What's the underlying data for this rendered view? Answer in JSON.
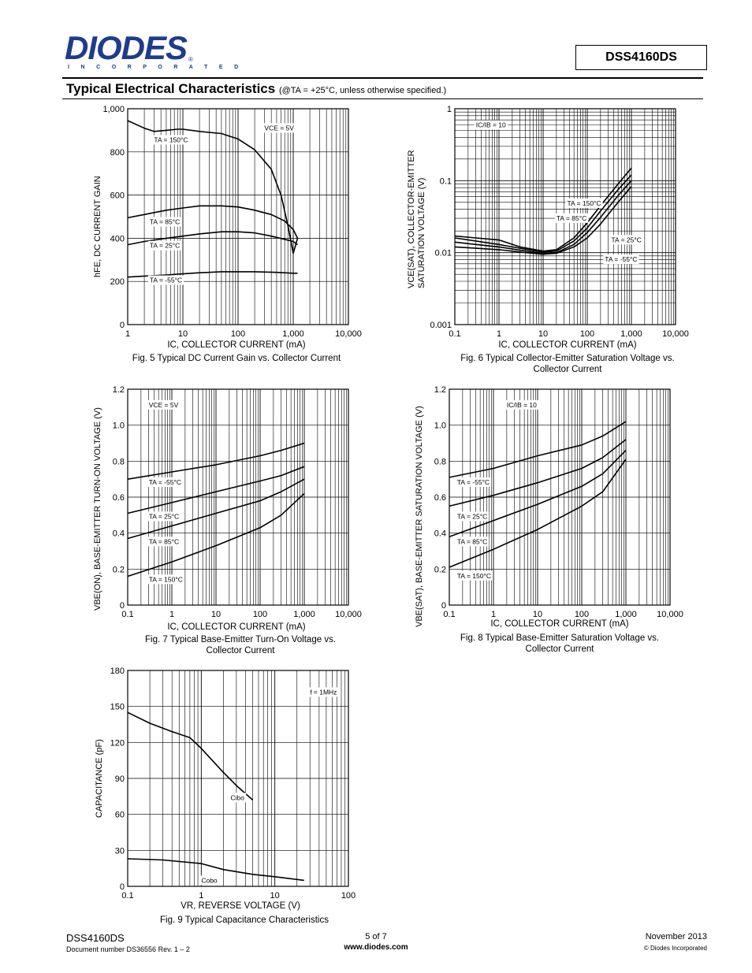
{
  "header": {
    "logo_text": "DIODES",
    "logo_sub": "I N C O R P O R A T E D",
    "part_number": "DSS4160DS",
    "section_title": "Typical Electrical Characteristics",
    "section_note": "(@TA = +25°C, unless otherwise specified.)"
  },
  "footer": {
    "part": "DSS4160DS",
    "doc": "Document number DS36556  Rev. 1 – 2",
    "page": "5 of 7",
    "url": "www.diodes.com",
    "date": "November 2013",
    "copyright": "© Diodes Incorporated"
  },
  "chart_data": [
    {
      "id": "fig5",
      "type": "line",
      "caption": "Fig. 5 Typical DC Current Gain vs. Collector Current",
      "xlabel": "IC, COLLECTOR CURRENT (mA)",
      "ylabel": "hFE, DC CURRENT GAIN",
      "xscale": "log",
      "yscale": "linear",
      "xlim": [
        1,
        10000
      ],
      "ylim": [
        0,
        1000
      ],
      "xticks": [
        1,
        10,
        100,
        1000,
        10000
      ],
      "xtick_labels": [
        "1",
        "10",
        "100",
        "1,000",
        "10,000"
      ],
      "yticks": [
        0,
        200,
        400,
        600,
        800,
        1000
      ],
      "ytick_labels": [
        "0",
        "200",
        "400",
        "600",
        "800",
        "1,000"
      ],
      "grid": true,
      "annotations": [
        {
          "text": "VCE = 5V",
          "x": 300,
          "y": 900
        },
        {
          "text": "TA = 150°C",
          "x": 3,
          "y": 845
        },
        {
          "text": "TA = 85°C",
          "x": 2.5,
          "y": 465
        },
        {
          "text": "TA = 25°C",
          "x": 2.5,
          "y": 355
        },
        {
          "text": "TA = -55°C",
          "x": 2.5,
          "y": 195
        }
      ],
      "series": [
        {
          "name": "TA = 150°C",
          "x": [
            1,
            2,
            3,
            5,
            8,
            10,
            20,
            50,
            100,
            200,
            400,
            600,
            800,
            1000,
            1200
          ],
          "y": [
            945,
            910,
            895,
            900,
            905,
            905,
            895,
            885,
            860,
            810,
            720,
            600,
            460,
            330,
            400
          ]
        },
        {
          "name": "TA = 85°C",
          "x": [
            1,
            2,
            5,
            10,
            20,
            50,
            100,
            200,
            400,
            700,
            1000,
            1200
          ],
          "y": [
            495,
            510,
            530,
            540,
            550,
            550,
            545,
            530,
            510,
            480,
            440,
            400
          ]
        },
        {
          "name": "TA = 25°C",
          "x": [
            1,
            2,
            5,
            10,
            20,
            50,
            100,
            200,
            400,
            700,
            1000,
            1200
          ],
          "y": [
            370,
            385,
            400,
            410,
            420,
            430,
            430,
            425,
            410,
            395,
            385,
            370
          ]
        },
        {
          "name": "TA = -55°C",
          "x": [
            1,
            2,
            5,
            10,
            20,
            50,
            100,
            200,
            500,
            1000,
            1200
          ],
          "y": [
            220,
            225,
            230,
            235,
            240,
            245,
            245,
            245,
            242,
            238,
            238
          ]
        }
      ]
    },
    {
      "id": "fig6",
      "type": "line",
      "caption": "Fig. 6 Typical Collector-Emitter Saturation Voltage vs. Collector Current",
      "xlabel": "IC, COLLECTOR CURRENT (mA)",
      "ylabel": "VCE(SAT), COLLECTOR-EMITTER SATURATION VOLTAGE (V)",
      "xscale": "log",
      "yscale": "log",
      "xlim": [
        0.1,
        10000
      ],
      "ylim": [
        0.001,
        1
      ],
      "xticks": [
        0.1,
        1,
        10,
        100,
        1000,
        10000
      ],
      "xtick_labels": [
        "0.1",
        "1",
        "10",
        "100",
        "1,000",
        "10,000"
      ],
      "yticks": [
        0.001,
        0.01,
        0.1,
        1
      ],
      "ytick_labels": [
        "0.001",
        "0.01",
        "0.1",
        "1"
      ],
      "grid": true,
      "annotations": [
        {
          "text": "IC/IB = 10",
          "x": 0.3,
          "y": 0.55
        },
        {
          "text": "TA = 150°C",
          "x": 35,
          "y": 0.045
        },
        {
          "text": "TA = 85°C",
          "x": 20,
          "y": 0.028
        },
        {
          "text": "TA = 25°C",
          "x": 350,
          "y": 0.014
        },
        {
          "text": "TA = -55°C",
          "x": 250,
          "y": 0.0075
        }
      ],
      "series": [
        {
          "name": "TA = 150°C",
          "x": [
            0.1,
            0.3,
            1,
            3,
            10,
            20,
            50,
            100,
            200,
            500,
            1000
          ],
          "y": [
            0.017,
            0.016,
            0.015,
            0.012,
            0.0105,
            0.011,
            0.016,
            0.026,
            0.045,
            0.09,
            0.15
          ]
        },
        {
          "name": "TA = 85°C",
          "x": [
            0.1,
            0.3,
            1,
            3,
            10,
            20,
            50,
            100,
            200,
            500,
            1000
          ],
          "y": [
            0.016,
            0.0145,
            0.013,
            0.0115,
            0.0102,
            0.0105,
            0.0145,
            0.022,
            0.038,
            0.075,
            0.12
          ]
        },
        {
          "name": "TA = 25°C",
          "x": [
            0.1,
            0.3,
            1,
            3,
            10,
            20,
            50,
            100,
            200,
            500,
            1000
          ],
          "y": [
            0.014,
            0.013,
            0.012,
            0.0108,
            0.0098,
            0.01,
            0.013,
            0.019,
            0.031,
            0.062,
            0.1
          ]
        },
        {
          "name": "TA = -55°C",
          "x": [
            0.1,
            0.3,
            1,
            3,
            10,
            20,
            50,
            100,
            200,
            500,
            1000
          ],
          "y": [
            0.012,
            0.0115,
            0.011,
            0.0102,
            0.0095,
            0.0098,
            0.012,
            0.016,
            0.025,
            0.05,
            0.083
          ]
        }
      ]
    },
    {
      "id": "fig7",
      "type": "line",
      "caption": "Fig. 7 Typical Base-Emitter Turn-On Voltage vs. Collector Current",
      "xlabel": "IC, COLLECTOR CURRENT (mA)",
      "ylabel": "VBE(ON), BASE-EMITTER TURN-ON VOLTAGE (V)",
      "xscale": "log",
      "yscale": "linear",
      "xlim": [
        0.1,
        10000
      ],
      "ylim": [
        0,
        1.2
      ],
      "xticks": [
        0.1,
        1,
        10,
        100,
        1000,
        10000
      ],
      "xtick_labels": [
        "0.1",
        "1",
        "10",
        "100",
        "1,000",
        "10,000"
      ],
      "yticks": [
        0,
        0.2,
        0.4,
        0.6,
        0.8,
        1.0,
        1.2
      ],
      "ytick_labels": [
        "0",
        "0.2",
        "0.4",
        "0.6",
        "0.8",
        "1.0",
        "1.2"
      ],
      "grid": true,
      "annotations": [
        {
          "text": "VCE = 5V",
          "x": 0.3,
          "y": 1.1
        },
        {
          "text": "TA = -55°C",
          "x": 0.3,
          "y": 0.67
        },
        {
          "text": "TA = 25°C",
          "x": 0.3,
          "y": 0.48
        },
        {
          "text": "TA = 85°C",
          "x": 0.3,
          "y": 0.34
        },
        {
          "text": "TA = 150°C",
          "x": 0.3,
          "y": 0.13
        }
      ],
      "series": [
        {
          "name": "TA = -55°C",
          "x": [
            0.1,
            1,
            10,
            100,
            300,
            1000
          ],
          "y": [
            0.7,
            0.74,
            0.78,
            0.83,
            0.86,
            0.9
          ]
        },
        {
          "name": "TA = 25°C",
          "x": [
            0.1,
            1,
            10,
            100,
            300,
            1000
          ],
          "y": [
            0.51,
            0.57,
            0.63,
            0.69,
            0.72,
            0.77
          ]
        },
        {
          "name": "TA = 85°C",
          "x": [
            0.1,
            1,
            10,
            100,
            300,
            1000
          ],
          "y": [
            0.37,
            0.44,
            0.51,
            0.58,
            0.63,
            0.7
          ]
        },
        {
          "name": "TA = 150°C",
          "x": [
            0.1,
            1,
            10,
            100,
            300,
            1000
          ],
          "y": [
            0.16,
            0.24,
            0.33,
            0.43,
            0.5,
            0.62
          ]
        }
      ]
    },
    {
      "id": "fig8",
      "type": "line",
      "caption": "Fig. 8 Typical Base-Emitter Saturation Voltage vs. Collector Current",
      "xlabel": "IC, COLLECTOR CURRENT (mA)",
      "ylabel": "VBE(SAT), BASE-EMITTER SATURATION VOLTAGE (V)",
      "xscale": "log",
      "yscale": "linear",
      "xlim": [
        0.1,
        10000
      ],
      "ylim": [
        0,
        1.2
      ],
      "xticks": [
        0.1,
        1,
        10,
        100,
        1000,
        10000
      ],
      "xtick_labels": [
        "0.1",
        "1",
        "10",
        "100",
        "1,000",
        "10,000"
      ],
      "yticks": [
        0,
        0.2,
        0.4,
        0.6,
        0.8,
        1.0,
        1.2
      ],
      "ytick_labels": [
        "0",
        "0.2",
        "0.4",
        "0.6",
        "0.8",
        "1.0",
        "1.2"
      ],
      "grid": true,
      "annotations": [
        {
          "text": "IC/IB = 10",
          "x": 2,
          "y": 1.1
        },
        {
          "text": "TA = -55°C",
          "x": 0.15,
          "y": 0.67
        },
        {
          "text": "TA = 25°C",
          "x": 0.15,
          "y": 0.48
        },
        {
          "text": "TA = 85°C",
          "x": 0.15,
          "y": 0.34
        },
        {
          "text": "TA = 150°C",
          "x": 0.15,
          "y": 0.15
        }
      ],
      "series": [
        {
          "name": "TA = -55°C",
          "x": [
            0.1,
            1,
            10,
            100,
            300,
            1000
          ],
          "y": [
            0.71,
            0.76,
            0.83,
            0.89,
            0.94,
            1.02
          ]
        },
        {
          "name": "TA = 25°C",
          "x": [
            0.1,
            1,
            10,
            100,
            300,
            1000
          ],
          "y": [
            0.55,
            0.61,
            0.68,
            0.76,
            0.82,
            0.92
          ]
        },
        {
          "name": "TA = 85°C",
          "x": [
            0.1,
            1,
            10,
            100,
            300,
            1000
          ],
          "y": [
            0.38,
            0.47,
            0.56,
            0.66,
            0.73,
            0.86
          ]
        },
        {
          "name": "TA = 150°C",
          "x": [
            0.1,
            1,
            10,
            100,
            300,
            1000
          ],
          "y": [
            0.21,
            0.31,
            0.42,
            0.55,
            0.63,
            0.81
          ]
        }
      ]
    },
    {
      "id": "fig9",
      "type": "line",
      "caption": "Fig. 9 Typical Capacitance Characteristics",
      "xlabel": "VR, REVERSE VOLTAGE (V)",
      "ylabel": "CAPACITANCE (pF)",
      "xscale": "log",
      "yscale": "linear",
      "xlim": [
        0.1,
        100
      ],
      "ylim": [
        0,
        180
      ],
      "xticks": [
        0.1,
        1,
        10,
        100
      ],
      "xtick_labels": [
        "0.1",
        "1",
        "10",
        "100"
      ],
      "yticks": [
        0,
        30,
        60,
        90,
        120,
        150,
        180
      ],
      "ytick_labels": [
        "0",
        "30",
        "60",
        "90",
        "120",
        "150",
        "180"
      ],
      "grid": true,
      "annotations": [
        {
          "text": "f = 1MHz",
          "x": 30,
          "y": 160
        },
        {
          "text": "Cibo",
          "x": 2.5,
          "y": 72
        },
        {
          "text": "Cobo",
          "x": 1,
          "y": 3
        }
      ],
      "series": [
        {
          "name": "Cibo",
          "x": [
            0.1,
            0.2,
            0.4,
            0.7,
            1,
            2,
            3,
            5
          ],
          "y": [
            145,
            136,
            129,
            124,
            115,
            95,
            84,
            72
          ]
        },
        {
          "name": "Cobo",
          "x": [
            0.1,
            0.3,
            1,
            2,
            5,
            10,
            25
          ],
          "y": [
            23,
            22,
            19,
            14,
            10,
            8,
            5
          ]
        }
      ]
    }
  ]
}
